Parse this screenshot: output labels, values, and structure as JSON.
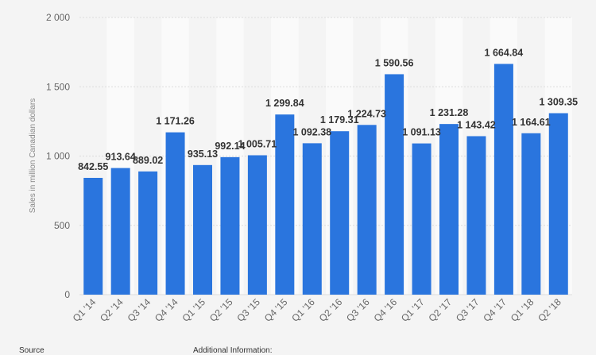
{
  "chart_data": {
    "type": "bar",
    "categories": [
      "Q1 '14",
      "Q2 '14",
      "Q3 '14",
      "Q4 '14",
      "Q1 '15",
      "Q2 '15",
      "Q3 '15",
      "Q4 '15",
      "Q1 '16",
      "Q2 '16",
      "Q3 '16",
      "Q4 '16",
      "Q1 '17",
      "Q2 '17",
      "Q3 '17",
      "Q4 '17",
      "Q1 '18",
      "Q2 '18"
    ],
    "values": [
      842.55,
      913.64,
      889.02,
      1171.26,
      935.13,
      992.14,
      1005.71,
      1299.84,
      1092.38,
      1179.31,
      1224.73,
      1590.56,
      1091.13,
      1231.28,
      1143.42,
      1664.84,
      1164.61,
      1309.35
    ],
    "value_labels": [
      "842.55",
      "913.64",
      "889.02",
      "1 171.26",
      "935.13",
      "992.14",
      "1 005.71",
      "1 299.84",
      "1 092.38",
      "1 179.31",
      "1 224.73",
      "1 590.56",
      "1 091.13",
      "1 231.28",
      "1 143.42",
      "1 664.84",
      "1 164.61",
      "1 309.35"
    ],
    "xlabel": "",
    "ylabel": "Sales in million Canadian dollars",
    "ylim": [
      0,
      2000
    ],
    "yticks": [
      0,
      500,
      1000,
      1500,
      2000
    ],
    "ytick_labels": [
      "0",
      "500",
      "1 000",
      "1 500",
      "2 000"
    ],
    "grid": true,
    "bar_color": "#2a75de",
    "alt_band_color": "#fafafa"
  },
  "footer": {
    "source_label": "Source",
    "additional_label": "Additional Information:"
  }
}
